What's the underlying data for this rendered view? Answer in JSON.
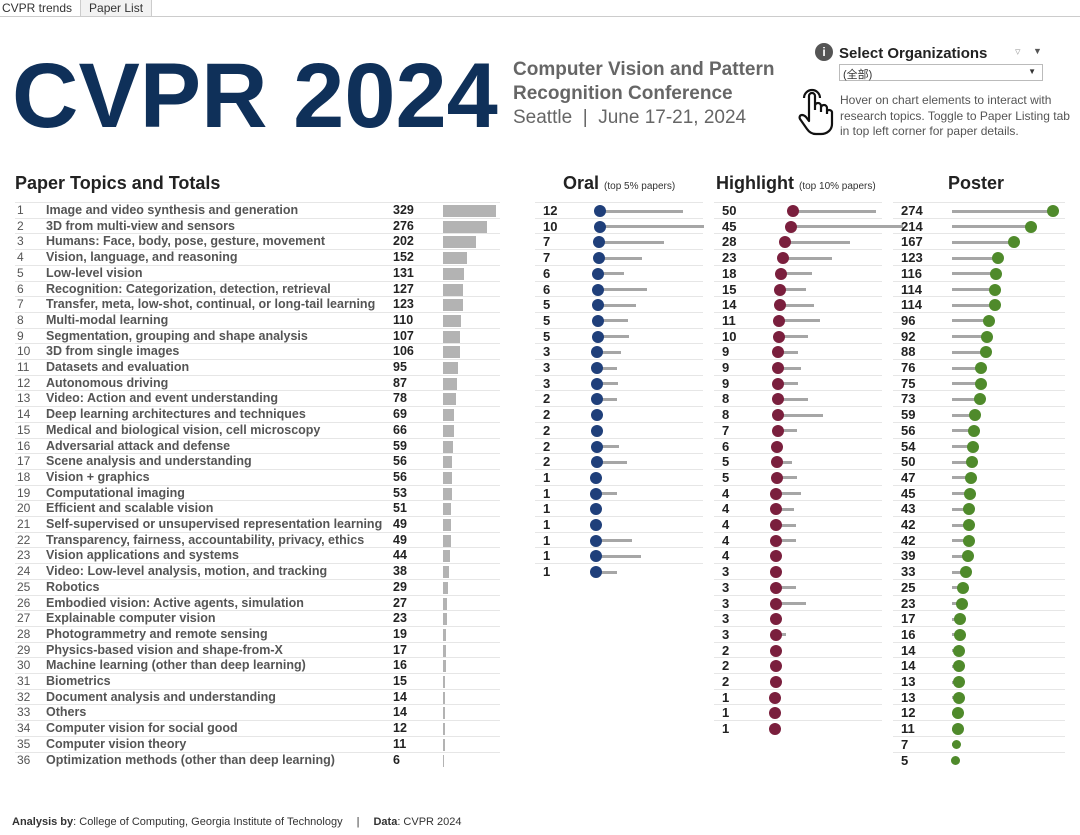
{
  "tabs": [
    "CVPR trends",
    "Paper List"
  ],
  "header": {
    "title": "CVPR 2024",
    "subtitle_line1": "Computer Vision and Pattern",
    "subtitle_line2": "Recognition Conference",
    "location": "Seattle",
    "dates": "June 17-21, 2024"
  },
  "filter": {
    "label": "Select Organizations",
    "value": "(全部)",
    "hint": "Hover on chart elements to interact with research topics. Toggle to Paper Listing tab in top left corner for paper details."
  },
  "colors": {
    "oral": "#1f3f7a",
    "highlight": "#7a1f3d",
    "poster": "#4f8a2b",
    "bar": "#b3b3b3"
  },
  "sections": {
    "topics": "Paper Topics and Totals",
    "oral": "Oral",
    "oral_note": "(top 5% papers)",
    "highlight": "Highlight",
    "highlight_note": "(top 10% papers)",
    "poster": "Poster"
  },
  "topics": [
    {
      "rank": "1",
      "name": "Image and video synthesis and generation",
      "total": 329
    },
    {
      "rank": "2",
      "name": "3D from multi-view and sensors",
      "total": 276
    },
    {
      "rank": "3",
      "name": "Humans: Face, body, pose, gesture, movement",
      "total": 202
    },
    {
      "rank": "4",
      "name": "Vision, language, and reasoning",
      "total": 152
    },
    {
      "rank": "5",
      "name": "Low-level vision",
      "total": 131
    },
    {
      "rank": "6",
      "name": "Recognition: Categorization, detection, retrieval",
      "total": 127
    },
    {
      "rank": "7",
      "name": "Transfer, meta, low-shot, continual, or long-tail learning",
      "total": 123
    },
    {
      "rank": "8",
      "name": "Multi-modal learning",
      "total": 110
    },
    {
      "rank": "9",
      "name": "Segmentation, grouping and shape analysis",
      "total": 107
    },
    {
      "rank": "10",
      "name": "3D from single images",
      "total": 106
    },
    {
      "rank": "11",
      "name": "Datasets and evaluation",
      "total": 95
    },
    {
      "rank": "12",
      "name": "Autonomous driving",
      "total": 87
    },
    {
      "rank": "13",
      "name": "Video: Action and event understanding",
      "total": 78
    },
    {
      "rank": "14",
      "name": "Deep learning architectures and techniques",
      "total": 69
    },
    {
      "rank": "15",
      "name": "Medical and biological vision, cell microscopy",
      "total": 66
    },
    {
      "rank": "16",
      "name": "Adversarial attack and defense",
      "total": 59
    },
    {
      "rank": "17",
      "name": "Scene analysis and understanding",
      "total": 56
    },
    {
      "rank": "18",
      "name": "Vision + graphics",
      "total": 56
    },
    {
      "rank": "19",
      "name": "Computational imaging",
      "total": 53
    },
    {
      "rank": "20",
      "name": "Efficient and scalable vision",
      "total": 51
    },
    {
      "rank": "21",
      "name": "Self-supervised or unsupervised representation learning",
      "total": 49
    },
    {
      "rank": "22",
      "name": "Transparency, fairness, accountability, privacy, ethics",
      "total": 49
    },
    {
      "rank": "23",
      "name": "Vision applications and systems",
      "total": 44
    },
    {
      "rank": "24",
      "name": "Video: Low-level analysis, motion, and tracking",
      "total": 38
    },
    {
      "rank": "25",
      "name": "Robotics",
      "total": 29
    },
    {
      "rank": "26",
      "name": "Embodied vision: Active agents, simulation",
      "total": 27
    },
    {
      "rank": "27",
      "name": "Explainable computer vision",
      "total": 23
    },
    {
      "rank": "28",
      "name": "Photogrammetry and remote sensing",
      "total": 19
    },
    {
      "rank": "29",
      "name": "Physics-based vision and shape-from-X",
      "total": 17
    },
    {
      "rank": "30",
      "name": "Machine learning (other than deep learning)",
      "total": 16
    },
    {
      "rank": "31",
      "name": "Biometrics",
      "total": 15
    },
    {
      "rank": "32",
      "name": "Document analysis and understanding",
      "total": 14
    },
    {
      "rank": "33",
      "name": "Others",
      "total": 14
    },
    {
      "rank": "34",
      "name": "Computer vision for social good",
      "total": 12
    },
    {
      "rank": "35",
      "name": "Computer vision theory",
      "total": 11
    },
    {
      "rank": "36",
      "name": "Optimization methods (other than deep learning)",
      "total": 6
    }
  ],
  "oral": {
    "values": [
      12,
      10,
      7,
      7,
      6,
      6,
      5,
      5,
      5,
      3,
      3,
      3,
      2,
      2,
      2,
      2,
      2,
      1,
      1,
      1,
      1,
      1,
      1,
      1
    ],
    "range": [
      230,
      290,
      183,
      122,
      72,
      136,
      105,
      83,
      86,
      67,
      56,
      58,
      56,
      0,
      0,
      61,
      83,
      0,
      56,
      0,
      0,
      100,
      125,
      56
    ]
  },
  "highlight": {
    "values": [
      50,
      45,
      28,
      23,
      18,
      15,
      14,
      11,
      10,
      9,
      9,
      9,
      8,
      8,
      7,
      6,
      5,
      5,
      4,
      4,
      4,
      4,
      4,
      3,
      3,
      3,
      3,
      3,
      2,
      2,
      2,
      1,
      1,
      1
    ],
    "range": [
      230,
      310,
      180,
      136,
      86,
      72,
      94,
      114,
      83,
      55,
      64,
      55,
      83,
      125,
      55,
      0,
      42,
      55,
      69,
      50,
      55,
      55,
      0,
      0,
      55,
      83,
      0,
      28,
      0,
      0,
      0,
      0,
      0,
      0
    ]
  },
  "poster": {
    "values": [
      274,
      214,
      167,
      123,
      116,
      114,
      114,
      96,
      92,
      88,
      76,
      75,
      73,
      59,
      56,
      54,
      50,
      47,
      45,
      43,
      42,
      42,
      39,
      33,
      25,
      23,
      17,
      16,
      14,
      14,
      13,
      13,
      12,
      11,
      7,
      5
    ]
  },
  "footer": {
    "analysis_label": "Analysis by",
    "analysis_value": ": College of Computing, Georgia Institute of Technology",
    "sep": "|",
    "data_label": "Data",
    "data_value": ": CVPR 2024"
  }
}
